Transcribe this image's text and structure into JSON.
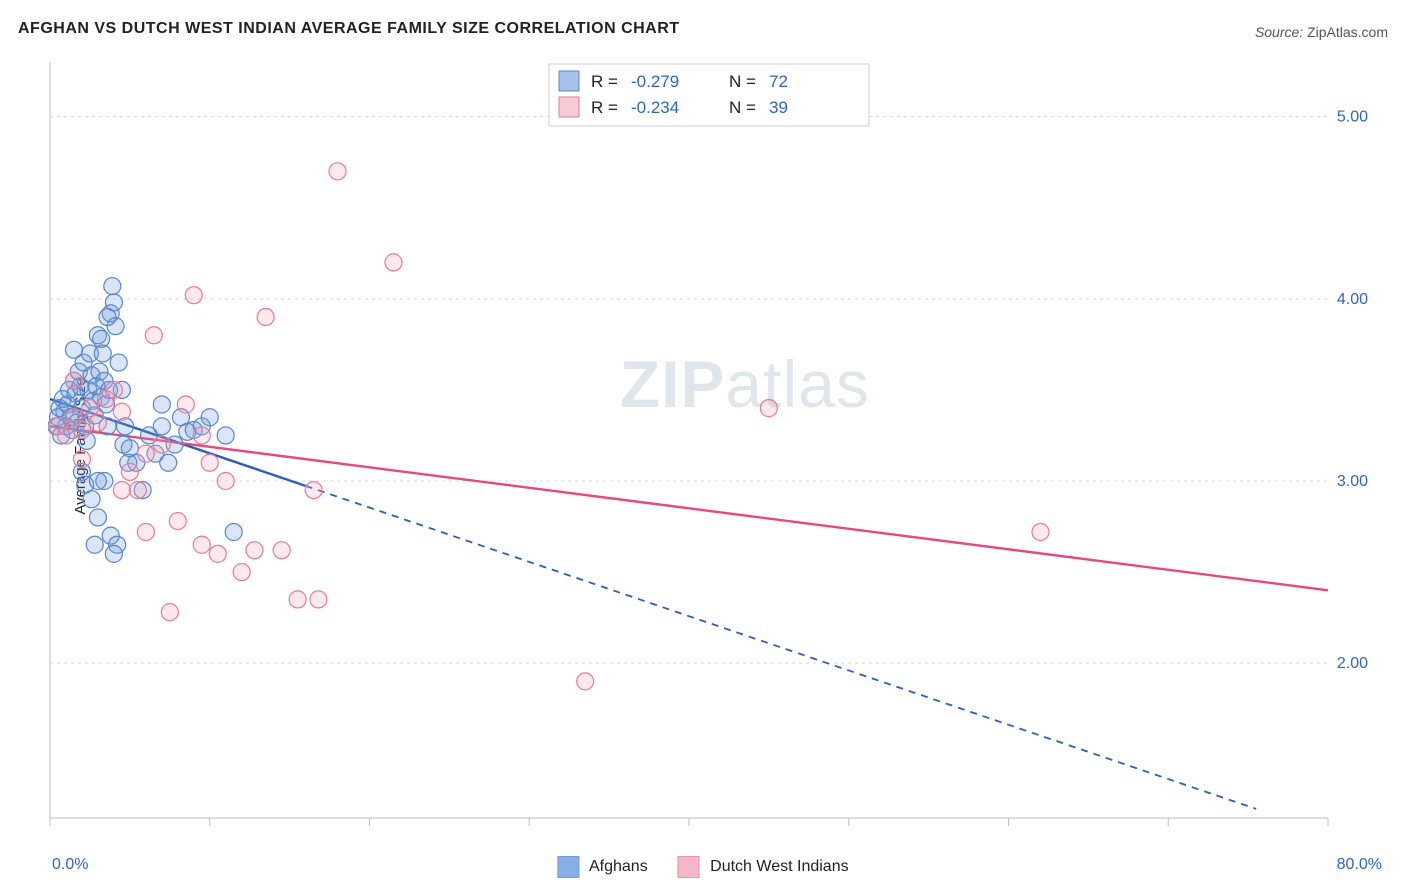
{
  "title": "AFGHAN VS DUTCH WEST INDIAN AVERAGE FAMILY SIZE CORRELATION CHART",
  "source_label": "Source:",
  "source_name": "ZipAtlas.com",
  "watermark_zip": "ZIP",
  "watermark_atlas": "atlas",
  "ylabel": "Average Family Size",
  "chart": {
    "type": "scatter",
    "background_color": "#ffffff",
    "grid_color": "#d9d9d9",
    "axis_color": "#bfbfbf",
    "xlim": [
      0,
      80
    ],
    "ylim": [
      1.15,
      5.3
    ],
    "x_ticks": [
      0,
      10,
      20,
      30,
      40,
      50,
      60,
      70,
      80
    ],
    "y_ticks": [
      2.0,
      3.0,
      4.0,
      5.0
    ],
    "y_tick_labels": [
      "2.00",
      "3.00",
      "4.00",
      "5.00"
    ],
    "x_min_label": "0.0%",
    "x_max_label": "80.0%",
    "tick_label_color": "#2f64c1",
    "tick_label_fontsize": 16,
    "marker_radius": 8.5,
    "marker_stroke_width": 1.2,
    "marker_fill_opacity": 0.25,
    "series": [
      {
        "name": "Afghans",
        "color": "#6a9ae0",
        "stroke": "#5a86c7",
        "line_color": "#2f5fb3",
        "r": "-0.279",
        "n": "72",
        "trend": {
          "x1": 0,
          "y1": 3.45,
          "x2": 75.5,
          "y2": 1.2,
          "solid_until_x": 16.0
        },
        "points": [
          [
            0.4,
            3.3
          ],
          [
            0.5,
            3.35
          ],
          [
            0.6,
            3.4
          ],
          [
            0.7,
            3.25
          ],
          [
            0.8,
            3.45
          ],
          [
            0.9,
            3.38
          ],
          [
            1.0,
            3.3
          ],
          [
            1.1,
            3.42
          ],
          [
            1.2,
            3.5
          ],
          [
            1.3,
            3.35
          ],
          [
            1.4,
            3.28
          ],
          [
            1.5,
            3.55
          ],
          [
            1.6,
            3.48
          ],
          [
            1.7,
            3.32
          ],
          [
            1.8,
            3.6
          ],
          [
            1.9,
            3.52
          ],
          [
            2.0,
            3.4
          ],
          [
            2.1,
            3.65
          ],
          [
            2.2,
            3.3
          ],
          [
            2.3,
            3.22
          ],
          [
            2.4,
            3.5
          ],
          [
            2.5,
            3.7
          ],
          [
            2.6,
            3.58
          ],
          [
            2.7,
            3.44
          ],
          [
            2.8,
            3.36
          ],
          [
            2.9,
            3.52
          ],
          [
            3.0,
            3.8
          ],
          [
            3.1,
            3.6
          ],
          [
            3.2,
            3.46
          ],
          [
            3.3,
            3.7
          ],
          [
            3.4,
            3.55
          ],
          [
            3.5,
            3.42
          ],
          [
            3.6,
            3.3
          ],
          [
            3.7,
            3.5
          ],
          [
            3.8,
            3.92
          ],
          [
            3.9,
            4.07
          ],
          [
            4.0,
            3.98
          ],
          [
            4.1,
            3.85
          ],
          [
            4.3,
            3.65
          ],
          [
            4.5,
            3.5
          ],
          [
            4.7,
            3.3
          ],
          [
            4.9,
            3.1
          ],
          [
            2.0,
            3.05
          ],
          [
            2.2,
            2.98
          ],
          [
            2.6,
            2.9
          ],
          [
            3.0,
            2.8
          ],
          [
            3.4,
            3.0
          ],
          [
            3.8,
            2.7
          ],
          [
            4.2,
            2.65
          ],
          [
            4.6,
            3.2
          ],
          [
            5.0,
            3.18
          ],
          [
            5.4,
            3.1
          ],
          [
            5.8,
            2.95
          ],
          [
            6.2,
            3.25
          ],
          [
            6.6,
            3.15
          ],
          [
            7.0,
            3.3
          ],
          [
            7.4,
            3.1
          ],
          [
            7.8,
            3.2
          ],
          [
            8.2,
            3.35
          ],
          [
            8.6,
            3.27
          ],
          [
            9.0,
            3.28
          ],
          [
            9.5,
            3.3
          ],
          [
            10.0,
            3.35
          ],
          [
            4.0,
            2.6
          ],
          [
            2.8,
            2.65
          ],
          [
            7.0,
            3.42
          ],
          [
            3.2,
            3.78
          ],
          [
            3.6,
            3.9
          ],
          [
            1.5,
            3.72
          ],
          [
            3.0,
            3.0
          ],
          [
            11.5,
            2.72
          ],
          [
            11.0,
            3.25
          ]
        ]
      },
      {
        "name": "Dutch West Indians",
        "color": "#f2a6bb",
        "stroke": "#e77a99",
        "line_color": "#e8497b",
        "r": "-0.234",
        "n": "39",
        "trend": {
          "x1": 0,
          "y1": 3.3,
          "x2": 80,
          "y2": 2.4,
          "solid_until_x": 80
        },
        "points": [
          [
            0.5,
            3.3
          ],
          [
            1.0,
            3.25
          ],
          [
            1.5,
            3.35
          ],
          [
            2.0,
            3.28
          ],
          [
            2.5,
            3.4
          ],
          [
            3.0,
            3.32
          ],
          [
            3.5,
            3.45
          ],
          [
            4.0,
            3.5
          ],
          [
            4.5,
            3.38
          ],
          [
            5.0,
            3.05
          ],
          [
            5.5,
            2.95
          ],
          [
            6.0,
            3.15
          ],
          [
            6.5,
            3.8
          ],
          [
            7.0,
            3.2
          ],
          [
            1.5,
            3.55
          ],
          [
            9.0,
            4.02
          ],
          [
            13.5,
            3.9
          ],
          [
            8.5,
            3.42
          ],
          [
            9.5,
            3.25
          ],
          [
            18.0,
            4.7
          ],
          [
            21.5,
            4.2
          ],
          [
            6.0,
            2.72
          ],
          [
            7.5,
            2.28
          ],
          [
            9.5,
            2.65
          ],
          [
            10.5,
            2.6
          ],
          [
            12.0,
            2.5
          ],
          [
            12.8,
            2.62
          ],
          [
            14.5,
            2.62
          ],
          [
            15.5,
            2.35
          ],
          [
            16.5,
            2.95
          ],
          [
            16.8,
            2.35
          ],
          [
            45.0,
            3.4
          ],
          [
            62.0,
            2.72
          ],
          [
            33.5,
            1.9
          ],
          [
            10.0,
            3.1
          ],
          [
            11.0,
            3.0
          ],
          [
            2.0,
            3.12
          ],
          [
            4.5,
            2.95
          ],
          [
            8.0,
            2.78
          ]
        ]
      }
    ],
    "top_legend": {
      "border_color": "#cfcfcf",
      "bg": "#ffffff",
      "swatch_size": 20
    }
  }
}
